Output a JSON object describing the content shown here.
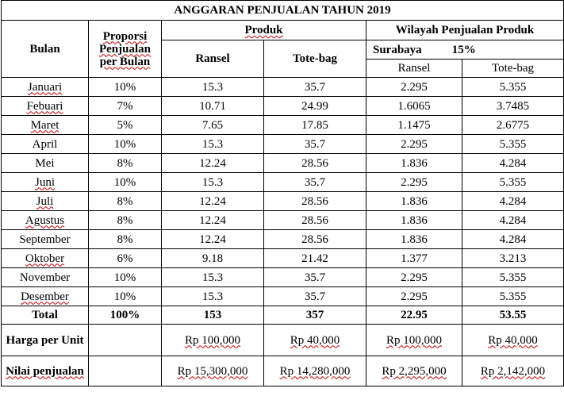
{
  "title": "ANGGARAN PENJUALAN TAHUN 2019",
  "headers": {
    "bulan": "Bulan",
    "proporsi": "Proporsi Penjualan per Bulan",
    "produk": "Produk",
    "wilayah": "Wilayah Penjualan Produk",
    "ransel": "Ransel",
    "totebag": "Tote-bag",
    "region_name": "Surabaya",
    "region_pct": "15%",
    "sub_ransel": "Ransel",
    "sub_totebag": "Tote-bag"
  },
  "rows": [
    {
      "bulan": "Januari",
      "proporsi": "10%",
      "ransel": "15.3",
      "totebag": "35.7",
      "w_ransel": "2.295",
      "w_totebag": "5.355"
    },
    {
      "bulan": "Febuari",
      "proporsi": "7%",
      "ransel": "10.71",
      "totebag": "24.99",
      "w_ransel": "1.6065",
      "w_totebag": "3.7485"
    },
    {
      "bulan": "Maret",
      "proporsi": "5%",
      "ransel": "7.65",
      "totebag": "17.85",
      "w_ransel": "1.1475",
      "w_totebag": "2.6775"
    },
    {
      "bulan": "April",
      "proporsi": "10%",
      "ransel": "15.3",
      "totebag": "35.7",
      "w_ransel": "2.295",
      "w_totebag": "5.355"
    },
    {
      "bulan": "Mei",
      "proporsi": "8%",
      "ransel": "12.24",
      "totebag": "28.56",
      "w_ransel": "1.836",
      "w_totebag": "4.284"
    },
    {
      "bulan": "Juni",
      "proporsi": "10%",
      "ransel": "15.3",
      "totebag": "35.7",
      "w_ransel": "2.295",
      "w_totebag": "5.355"
    },
    {
      "bulan": "Juli",
      "proporsi": "8%",
      "ransel": "12.24",
      "totebag": "28.56",
      "w_ransel": "1.836",
      "w_totebag": "4.284"
    },
    {
      "bulan": "Agustus",
      "proporsi": "8%",
      "ransel": "12.24",
      "totebag": "28.56",
      "w_ransel": "1.836",
      "w_totebag": "4.284"
    },
    {
      "bulan": "September",
      "proporsi": "8%",
      "ransel": "12.24",
      "totebag": "28.56",
      "w_ransel": "1.836",
      "w_totebag": "4.284"
    },
    {
      "bulan": "Oktober",
      "proporsi": "6%",
      "ransel": "9.18",
      "totebag": "21.42",
      "w_ransel": "1.377",
      "w_totebag": "3.213"
    },
    {
      "bulan": "November",
      "proporsi": "10%",
      "ransel": "15.3",
      "totebag": "35.7",
      "w_ransel": "2.295",
      "w_totebag": "5.355"
    },
    {
      "bulan": "Desember",
      "proporsi": "10%",
      "ransel": "15.3",
      "totebag": "35.7",
      "w_ransel": "2.295",
      "w_totebag": "5.355"
    }
  ],
  "total": {
    "label": "Total",
    "proporsi": "100%",
    "ransel": "153",
    "totebag": "357",
    "w_ransel": "22.95",
    "w_totebag": "53.55"
  },
  "harga": {
    "label": "Harga per Unit",
    "ransel": "Rp 100,000",
    "totebag": "Rp 40,000",
    "w_ransel": "Rp 100,000",
    "w_totebag": "Rp 40,000"
  },
  "nilai": {
    "label": "Nilai penjualan",
    "ransel": "Rp 15,300,000",
    "totebag": "Rp 14,280,000",
    "w_ransel": "Rp 2,295,000",
    "w_totebag": "Rp 2,142,000"
  }
}
